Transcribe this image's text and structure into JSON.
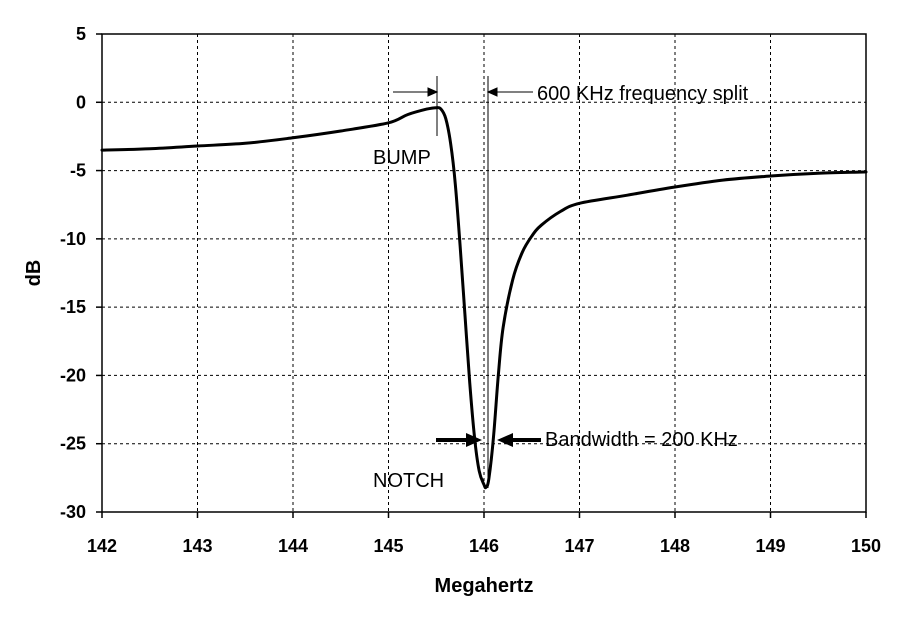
{
  "chart_data": {
    "type": "line",
    "title": "",
    "xlabel": "Megahertz",
    "ylabel": "dB",
    "xlim": [
      142,
      150
    ],
    "ylim": [
      -30,
      5
    ],
    "grid": true,
    "x_ticks": [
      142,
      143,
      144,
      145,
      146,
      147,
      148,
      149,
      150
    ],
    "y_ticks": [
      5,
      0,
      -5,
      -10,
      -15,
      -20,
      -25,
      -30
    ],
    "series": [
      {
        "x": [
          142.0,
          142.5,
          143.0,
          143.5,
          144.0,
          144.5,
          145.0,
          145.2,
          145.4,
          145.5,
          145.55,
          145.6,
          145.65,
          145.7,
          145.75,
          145.8,
          145.85,
          145.9,
          145.95,
          146.0,
          146.02,
          146.05,
          146.1,
          146.15,
          146.2,
          146.3,
          146.4,
          146.5,
          146.6,
          146.8,
          147.0,
          147.5,
          148.0,
          148.5,
          149.0,
          149.5,
          150.0
        ],
        "y": [
          -3.5,
          -3.4,
          -3.2,
          -3.0,
          -2.6,
          -2.1,
          -1.5,
          -0.9,
          -0.5,
          -0.4,
          -0.5,
          -1.2,
          -3.0,
          -6.0,
          -10.5,
          -15.5,
          -20.5,
          -24.5,
          -27.0,
          -28.0,
          -28.2,
          -27.6,
          -24.5,
          -20.0,
          -16.5,
          -13.0,
          -11.0,
          -9.8,
          -9.0,
          -8.0,
          -7.4,
          -6.8,
          -6.2,
          -5.7,
          -5.4,
          -5.2,
          -5.1
        ]
      }
    ],
    "annotations": [
      {
        "text": "600 KHz frequency split"
      },
      {
        "text": "BUMP"
      },
      {
        "text": "Bandwidth = 200 KHz"
      },
      {
        "text": "NOTCH"
      }
    ]
  }
}
